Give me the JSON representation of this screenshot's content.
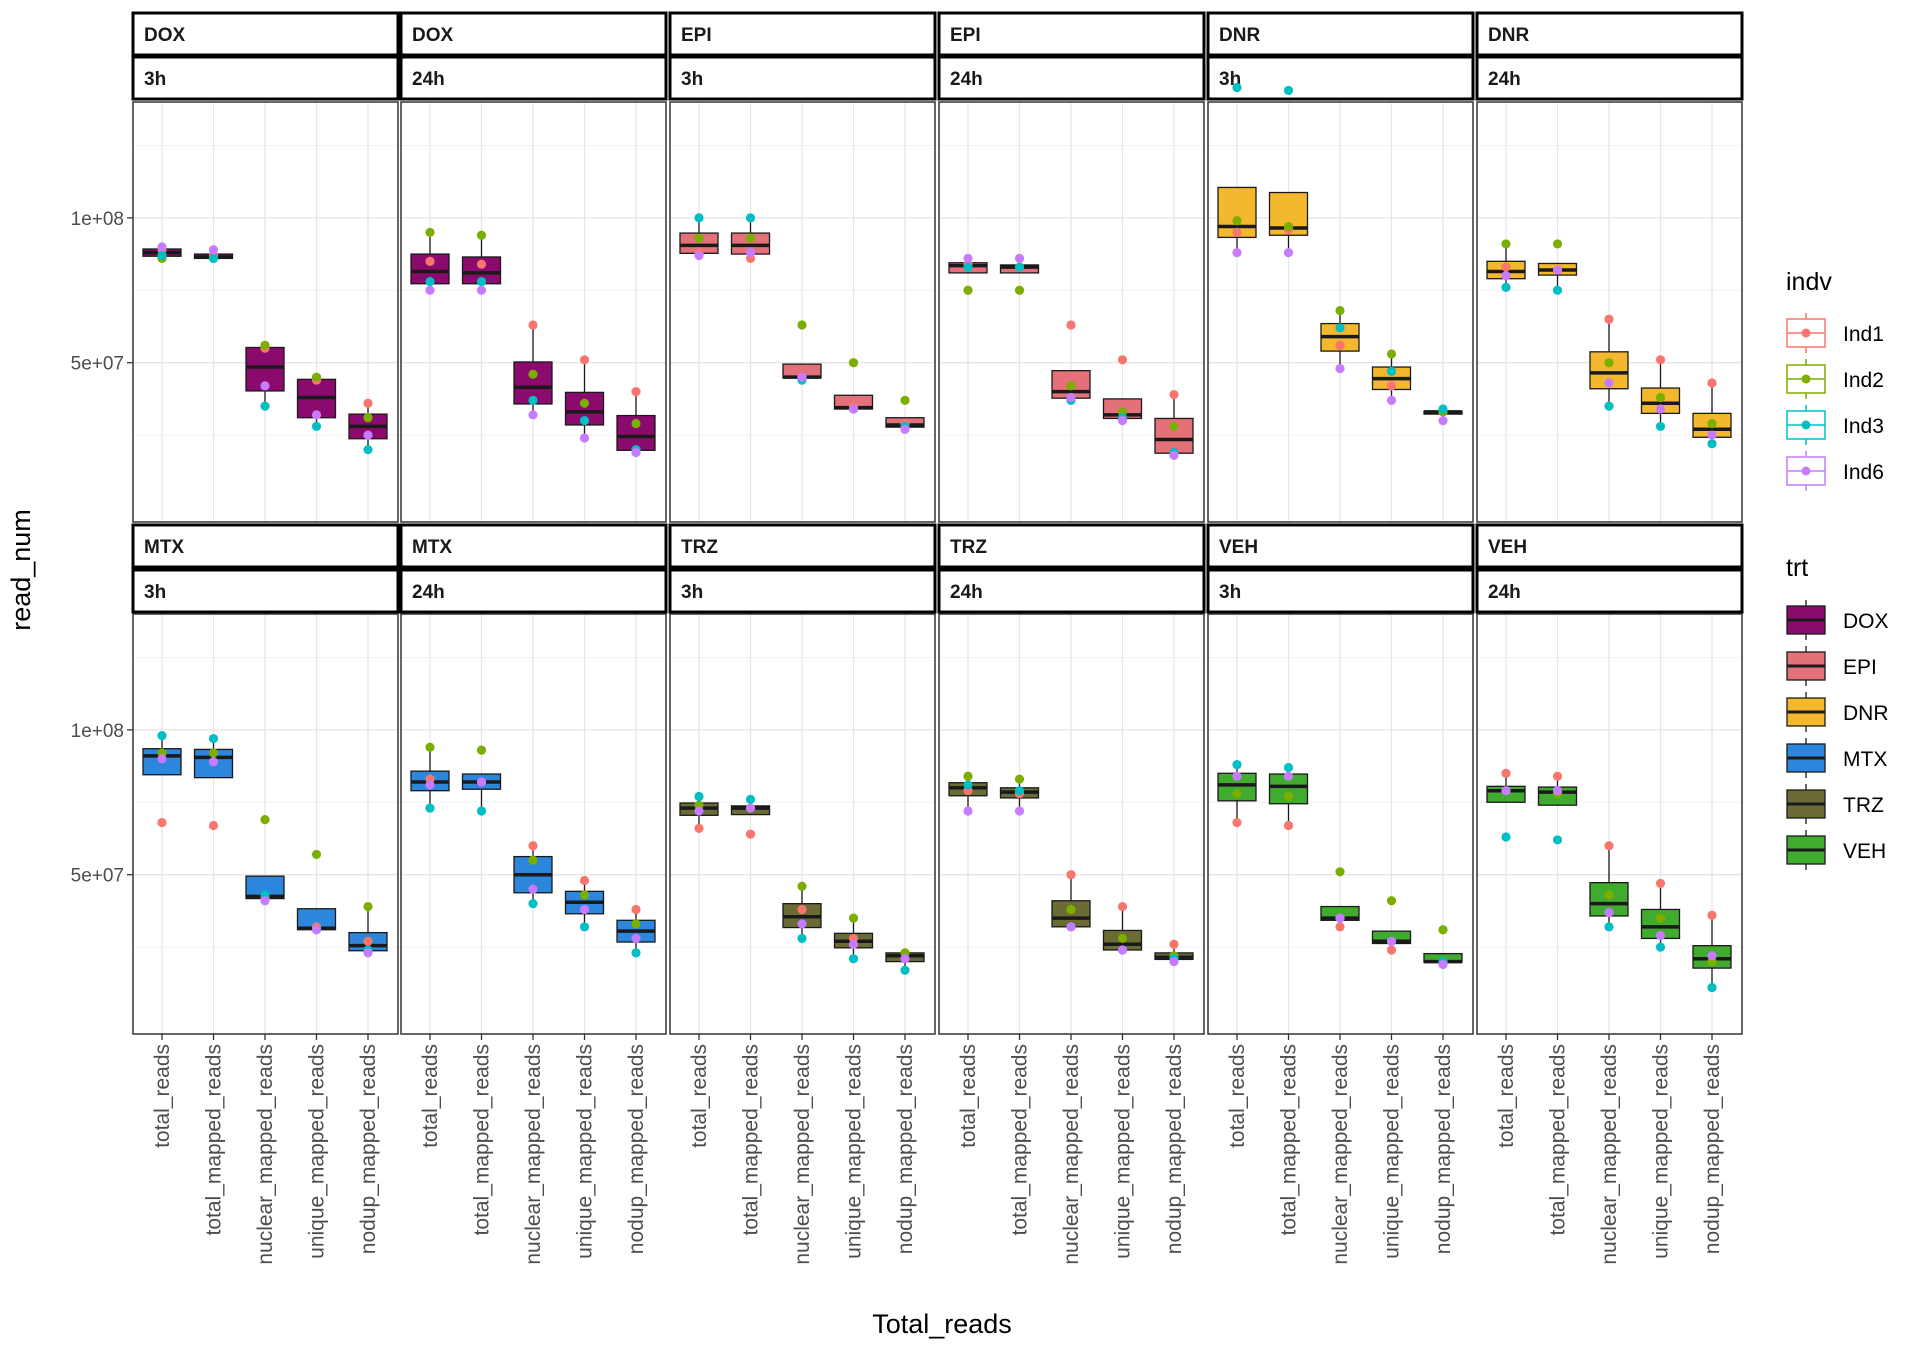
{
  "chart_data": {
    "type": "boxplot",
    "xlabel": "Total_reads",
    "ylabel": "read_num",
    "ylim": [
      -5000000,
      140000000
    ],
    "yticks": [
      50000000,
      100000000
    ],
    "ytick_labels": [
      "5e+07",
      "1e+08"
    ],
    "categories": [
      "total_reads",
      "total_mapped_reads",
      "nuclear_mapped_reads",
      "unique_mapped_reads",
      "nodup_mapped_reads"
    ],
    "individuals": [
      "Ind1",
      "Ind2",
      "Ind3",
      "Ind6"
    ],
    "indv_colors": {
      "Ind1": "#f8766d",
      "Ind2": "#7cae00",
      "Ind3": "#00bfc4",
      "Ind6": "#c77cff"
    },
    "trt_colors": {
      "DOX": "#8b0a6e",
      "EPI": "#e4717a",
      "DNR": "#f4b82e",
      "MTX": "#2c86dc",
      "TRZ": "#6b6b35",
      "VEH": "#41ab2f"
    },
    "legend": {
      "indv_title": "indv",
      "indv_labels": [
        "Ind1",
        "Ind2",
        "Ind3",
        "Ind6"
      ],
      "trt_title": "trt",
      "trt_labels": [
        "DOX",
        "EPI",
        "DNR",
        "MTX",
        "TRZ",
        "VEH"
      ]
    },
    "panels": [
      {
        "drug": "DOX",
        "time": "3h",
        "trt": "DOX",
        "points": [
          [
            89,
            86,
            87,
            90
          ],
          [
            87,
            86,
            86,
            89
          ],
          [
            55,
            56,
            35,
            42
          ],
          [
            44,
            45,
            28,
            32
          ],
          [
            36,
            31,
            20,
            25
          ]
        ]
      },
      {
        "drug": "DOX",
        "time": "24h",
        "trt": "DOX",
        "points": [
          [
            85,
            95,
            78,
            75
          ],
          [
            84,
            94,
            78,
            75
          ],
          [
            63,
            46,
            37,
            32
          ],
          [
            51,
            36,
            30,
            24
          ],
          [
            40,
            29,
            20,
            19
          ]
        ]
      },
      {
        "drug": "EPI",
        "time": "3h",
        "trt": "EPI",
        "points": [
          [
            88,
            93,
            100,
            87
          ],
          [
            86,
            93,
            100,
            88
          ],
          [
            45,
            63,
            44,
            45
          ],
          [
            35,
            50,
            34,
            34
          ],
          [
            29,
            37,
            28,
            27
          ]
        ]
      },
      {
        "drug": "EPI",
        "time": "24h",
        "trt": "EPI",
        "points": [
          [
            84,
            75,
            83,
            86
          ],
          [
            83,
            75,
            83,
            86
          ],
          [
            63,
            42,
            37,
            38
          ],
          [
            51,
            33,
            31,
            30
          ],
          [
            39,
            28,
            19,
            18
          ]
        ]
      },
      {
        "drug": "DNR",
        "time": "3h",
        "trt": "DNR",
        "points": [
          [
            95,
            99,
            145,
            88
          ],
          [
            96,
            97,
            144,
            88
          ],
          [
            56,
            68,
            62,
            48
          ],
          [
            42,
            53,
            47,
            37
          ],
          [
            33,
            33,
            34,
            30
          ]
        ]
      },
      {
        "drug": "DNR",
        "time": "24h",
        "trt": "DNR",
        "points": [
          [
            83,
            91,
            76,
            80
          ],
          [
            82,
            91,
            75,
            82
          ],
          [
            65,
            50,
            35,
            43
          ],
          [
            51,
            38,
            28,
            34
          ],
          [
            43,
            29,
            22,
            25
          ]
        ]
      },
      {
        "drug": "MTX",
        "time": "3h",
        "trt": "MTX",
        "points": [
          [
            68,
            92,
            98,
            90
          ],
          [
            67,
            92,
            97,
            89
          ],
          [
            42,
            69,
            43,
            41
          ],
          [
            32,
            57,
            31,
            31
          ],
          [
            27,
            39,
            24,
            23
          ]
        ]
      },
      {
        "drug": "MTX",
        "time": "24h",
        "trt": "MTX",
        "points": [
          [
            83,
            94,
            73,
            81
          ],
          [
            82,
            93,
            72,
            82
          ],
          [
            60,
            55,
            40,
            45
          ],
          [
            48,
            43,
            32,
            38
          ],
          [
            38,
            33,
            23,
            28
          ]
        ]
      },
      {
        "drug": "TRZ",
        "time": "3h",
        "trt": "TRZ",
        "points": [
          [
            66,
            74,
            77,
            72
          ],
          [
            64,
            73,
            76,
            73
          ],
          [
            38,
            46,
            28,
            33
          ],
          [
            28,
            35,
            21,
            26
          ],
          [
            23,
            23,
            17,
            21
          ]
        ]
      },
      {
        "drug": "TRZ",
        "time": "24h",
        "trt": "TRZ",
        "points": [
          [
            79,
            84,
            81,
            72
          ],
          [
            78,
            83,
            79,
            72
          ],
          [
            50,
            38,
            32,
            32
          ],
          [
            39,
            28,
            24,
            24
          ],
          [
            26,
            22,
            21,
            20
          ]
        ]
      },
      {
        "drug": "VEH",
        "time": "3h",
        "trt": "VEH",
        "points": [
          [
            68,
            78,
            88,
            84
          ],
          [
            67,
            77,
            87,
            84
          ],
          [
            32,
            51,
            35,
            35
          ],
          [
            24,
            41,
            27,
            27
          ],
          [
            20,
            31,
            20,
            19
          ]
        ]
      },
      {
        "drug": "VEH",
        "time": "24h",
        "trt": "VEH",
        "points": [
          [
            85,
            79,
            63,
            79
          ],
          [
            84,
            78,
            62,
            79
          ],
          [
            60,
            43,
            32,
            37
          ],
          [
            47,
            35,
            25,
            29
          ],
          [
            36,
            20,
            11,
            22
          ]
        ]
      }
    ]
  }
}
